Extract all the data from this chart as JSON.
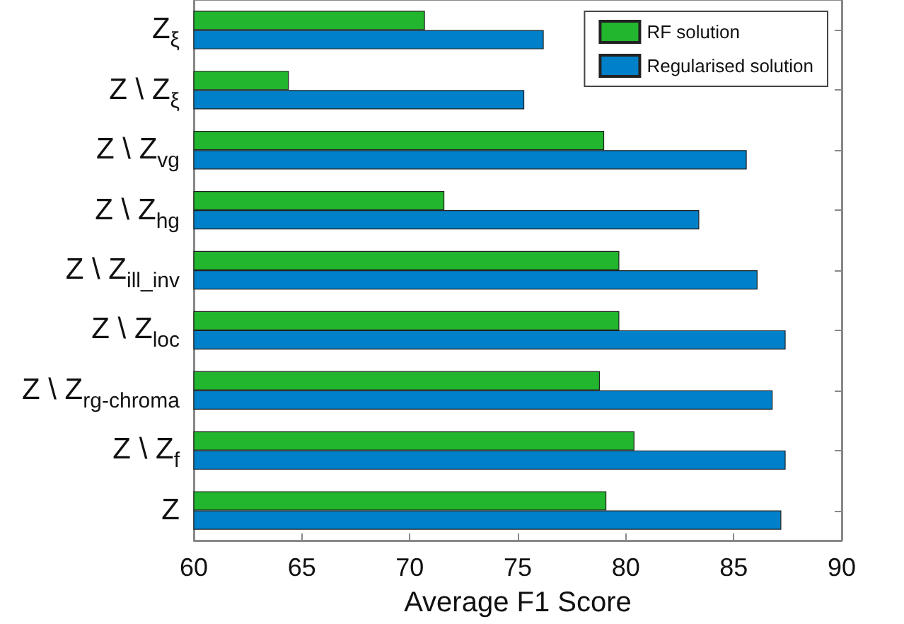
{
  "chart_data": {
    "type": "bar",
    "orientation": "horizontal",
    "xlabel": "Average F1 Score",
    "categories": [
      "Z$_{ξ}$",
      "Z \\ Z$_{ξ}$",
      "Z \\ Z$_{vg}$",
      "Z \\ Z$_{hg}$",
      "Z \\ Z$_{ill_inv}$",
      "Z \\ Z$_{loc}$",
      "Z \\ Z$_{rg-chroma}$",
      "Z \\ Z$_{f}$",
      "Z"
    ],
    "series": [
      {
        "name": "RF solution",
        "color": "#22b52e",
        "values": [
          70.7,
          64.4,
          79.0,
          71.6,
          79.7,
          79.7,
          78.8,
          80.4,
          79.1
        ]
      },
      {
        "name": "Regularised solution",
        "color": "#0080c8",
        "values": [
          76.2,
          75.3,
          85.6,
          83.4,
          86.1,
          87.4,
          86.8,
          87.4,
          87.2
        ]
      }
    ],
    "xlim": [
      60,
      90
    ],
    "xticks": [
      60,
      65,
      70,
      75,
      80,
      85,
      90
    ],
    "grid": false,
    "legend": "top right"
  }
}
